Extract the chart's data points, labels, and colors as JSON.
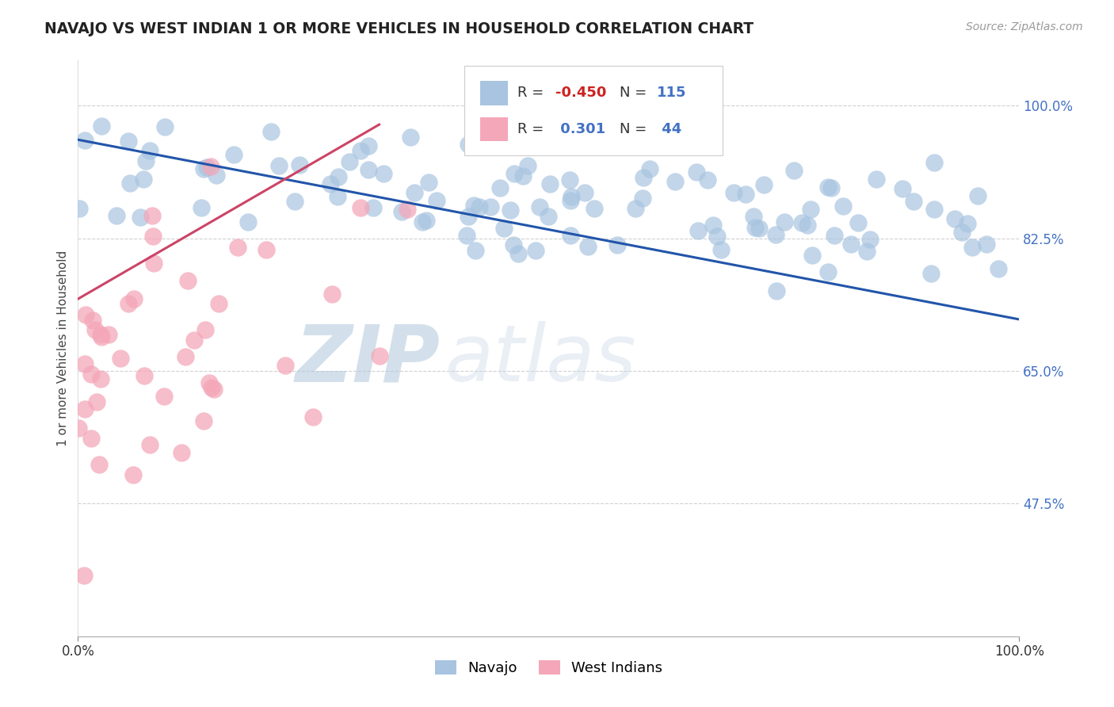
{
  "title": "NAVAJO VS WEST INDIAN 1 OR MORE VEHICLES IN HOUSEHOLD CORRELATION CHART",
  "source_text": "Source: ZipAtlas.com",
  "ylabel": "1 or more Vehicles in Household",
  "xmin": 0.0,
  "xmax": 1.0,
  "ymin": 0.3,
  "ymax": 1.06,
  "yticks": [
    0.475,
    0.65,
    0.825,
    1.0
  ],
  "ytick_labels": [
    "47.5%",
    "65.0%",
    "82.5%",
    "100.0%"
  ],
  "xtick_labels": [
    "0.0%",
    "100.0%"
  ],
  "xticks": [
    0.0,
    1.0
  ],
  "navajo_R": -0.45,
  "navajo_N": 115,
  "westindian_R": 0.301,
  "westindian_N": 44,
  "navajo_color": "#a8c4e0",
  "westindian_color": "#f4a7b9",
  "navajo_line_color": "#2255aa",
  "westindian_line_color": "#cc4466",
  "legend_navajo": "Navajo",
  "legend_westindian": "West Indians",
  "watermark_zip": "ZIP",
  "watermark_atlas": "atlas",
  "navajo_trend_x0": 0.0,
  "navajo_trend_y0": 0.955,
  "navajo_trend_x1": 1.0,
  "navajo_trend_y1": 0.718,
  "wi_trend_x0": 0.0,
  "wi_trend_y0": 0.745,
  "wi_trend_x1": 0.32,
  "wi_trend_y1": 0.975,
  "title_fontsize": 13.5,
  "source_fontsize": 10,
  "tick_fontsize": 12,
  "ylabel_fontsize": 11
}
